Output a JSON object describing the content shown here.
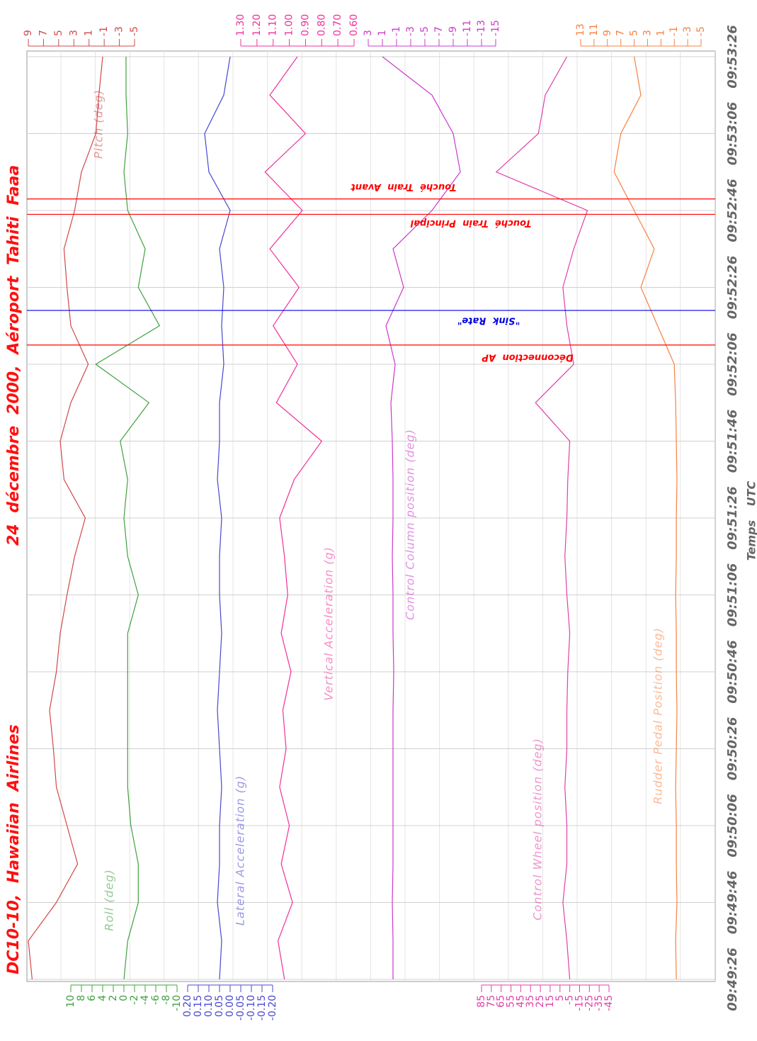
{
  "chart_data": {
    "type": "line",
    "title": "DC10-10, Hawaiian Airlines",
    "subtitle": "24 décembre 2000, Aéroport Tahiti Faaa",
    "xlabel": "Temps UTC",
    "x": [
      "09:49:26",
      "09:49:36",
      "09:49:46",
      "09:49:56",
      "09:50:06",
      "09:50:16",
      "09:50:26",
      "09:50:36",
      "09:50:46",
      "09:50:56",
      "09:51:06",
      "09:51:16",
      "09:51:26",
      "09:51:36",
      "09:51:46",
      "09:51:56",
      "09:52:06",
      "09:52:16",
      "09:52:26",
      "09:52:36",
      "09:52:46",
      "09:52:56",
      "09:53:06",
      "09:53:16",
      "09:53:26"
    ],
    "xlim": [
      "09:49:26",
      "09:53:26"
    ],
    "xticks": [
      "09:49:26",
      "09:49:46",
      "09:50:06",
      "09:50:26",
      "09:50:46",
      "09:51:06",
      "09:51:26",
      "09:51:46",
      "09:52:06",
      "09:52:26",
      "09:52:46",
      "09:53:06",
      "09:53:26"
    ],
    "grid": true,
    "series": [
      {
        "name": "Pitch (deg)",
        "color": "#d04848",
        "axis_side": "top",
        "ylim": [
          -5,
          9
        ],
        "yticks": [
          9,
          7,
          5,
          3,
          1,
          -1,
          -3,
          -5
        ],
        "values": [
          8.5,
          9,
          5.3,
          2.5,
          3.9,
          5.3,
          5.7,
          6.2,
          5.3,
          4.8,
          3.9,
          2.9,
          1.5,
          4.3,
          4.8,
          3.4,
          1.1,
          3.4,
          3.9,
          4.3,
          2.9,
          2.0,
          0.1,
          -0.3,
          -0.8
        ]
      },
      {
        "name": "Roll (deg)",
        "color": "#40a040",
        "axis_side": "bottom",
        "ylim": [
          -10,
          10
        ],
        "yticks": [
          10,
          8,
          6,
          4,
          2,
          0,
          -2,
          -4,
          -6,
          -8,
          -10
        ],
        "values": [
          0,
          -0.7,
          -2.7,
          -2.7,
          -1.3,
          -0.7,
          -0.7,
          -0.7,
          -0.7,
          -0.7,
          -2.7,
          -0.7,
          0,
          -0.7,
          0.7,
          -4.7,
          5.3,
          -6.7,
          -2.7,
          -4,
          -0.7,
          0,
          -0.7,
          -0.4,
          -0.4
        ]
      },
      {
        "name": "Lateral Acceleration (g)",
        "color": "#4848d0",
        "axis_side": "bottom",
        "ylim": [
          -0.2,
          0.2
        ],
        "yticks": [
          {
            "value": 0.2,
            "label": "0.20"
          },
          {
            "value": 0.15,
            "label": "0.15"
          },
          {
            "value": 0.1,
            "label": "0.10"
          },
          {
            "value": 0.05,
            "label": "0.05"
          },
          {
            "value": 0,
            "label": "0.00"
          },
          {
            "value": -0.05,
            "label": "-0.05"
          },
          {
            "value": -0.1,
            "label": "-0.10"
          },
          {
            "value": -0.15,
            "label": "-0.15"
          },
          {
            "value": -0.2,
            "label": "-0.20"
          }
        ],
        "values": [
          0.05,
          0.04,
          0.06,
          0.05,
          0.05,
          0.04,
          0.05,
          0.06,
          0.05,
          0.04,
          0.05,
          0.05,
          0.04,
          0.06,
          0.05,
          0.05,
          0.03,
          0.04,
          0.03,
          0.05,
          0,
          0.1,
          0.12,
          0.03,
          0
        ]
      },
      {
        "name": "Vertical Acceleration (g)",
        "color": "#f0309a",
        "axis_side": "top",
        "ylim": [
          0.6,
          1.3
        ],
        "yticks": [
          {
            "value": 1.3,
            "label": "1.30"
          },
          {
            "value": 1.2,
            "label": "1.20"
          },
          {
            "value": 1.1,
            "label": "1.10"
          },
          {
            "value": 1.0,
            "label": "1.00"
          },
          {
            "value": 0.9,
            "label": "0.90"
          },
          {
            "value": 0.8,
            "label": "0.80"
          },
          {
            "value": 0.7,
            "label": "0.70"
          },
          {
            "value": 0.6,
            "label": "0.60"
          }
        ],
        "values": [
          1.03,
          1.07,
          0.98,
          1.05,
          1.0,
          1.06,
          1.02,
          1.04,
          0.99,
          1.05,
          1.01,
          1.03,
          1.06,
          0.97,
          0.8,
          1.08,
          0.95,
          1.1,
          0.94,
          1.12,
          0.92,
          1.15,
          0.9,
          1.12,
          0.95
        ]
      },
      {
        "name": "Control Column position (deg)",
        "color": "#cc38cc",
        "axis_side": "top",
        "ylim": [
          -15,
          3
        ],
        "yticks": [
          3,
          1,
          -1,
          -3,
          -5,
          -7,
          -9,
          -11,
          -13,
          -15
        ],
        "values": [
          -0.5,
          -0.5,
          -0.4,
          -0.5,
          -0.5,
          -0.5,
          -0.5,
          -0.5,
          -0.6,
          -0.5,
          -0.5,
          -0.4,
          -0.5,
          -0.5,
          -0.4,
          -0.2,
          -0.8,
          0.5,
          -2,
          -0.5,
          -6,
          -10,
          -9,
          -6,
          1
        ]
      },
      {
        "name": "Control Wheel position (deg)",
        "color": "#e040a8",
        "axis_side": "bottom",
        "ylim": [
          -45,
          85
        ],
        "yticks": [
          85,
          75,
          65,
          55,
          45,
          35,
          25,
          15,
          5,
          -5,
          -15,
          -25,
          -35,
          -45
        ],
        "values": [
          -5,
          -2,
          2,
          -2,
          -2,
          0,
          -2,
          -2,
          -3,
          -5,
          -2,
          0,
          -2,
          -3,
          -5,
          30,
          -9,
          -2,
          2,
          -9,
          -23,
          70,
          27,
          20,
          -2
        ]
      },
      {
        "name": "Rudder Pedal Position (deg)",
        "color": "#f88040",
        "axis_side": "top",
        "ylim": [
          -5,
          13
        ],
        "yticks": [
          13,
          11,
          9,
          7,
          5,
          3,
          1,
          -1,
          -3,
          -5
        ],
        "values": [
          -1.3,
          -1.2,
          -1.4,
          -1.3,
          -1.3,
          -1.2,
          -1.3,
          -1.4,
          -1.3,
          -1.3,
          -1.2,
          -1.3,
          -1.3,
          -1.4,
          -1.3,
          -1.2,
          -1,
          1.5,
          4,
          2,
          5,
          8,
          7,
          4,
          5
        ]
      }
    ],
    "events": [
      {
        "label": "Déconnection AP",
        "x": "09:52:11",
        "color": "#ff0000"
      },
      {
        "label": "\"Sink Rate\"",
        "x": "09:52:20",
        "color": "#0000e0"
      },
      {
        "label": "Touché Train Principal",
        "x": "09:52:45",
        "color": "#ff0000"
      },
      {
        "label": "Touché Train Avant",
        "x": "09:52:49",
        "color": "#ff0000"
      }
    ]
  }
}
